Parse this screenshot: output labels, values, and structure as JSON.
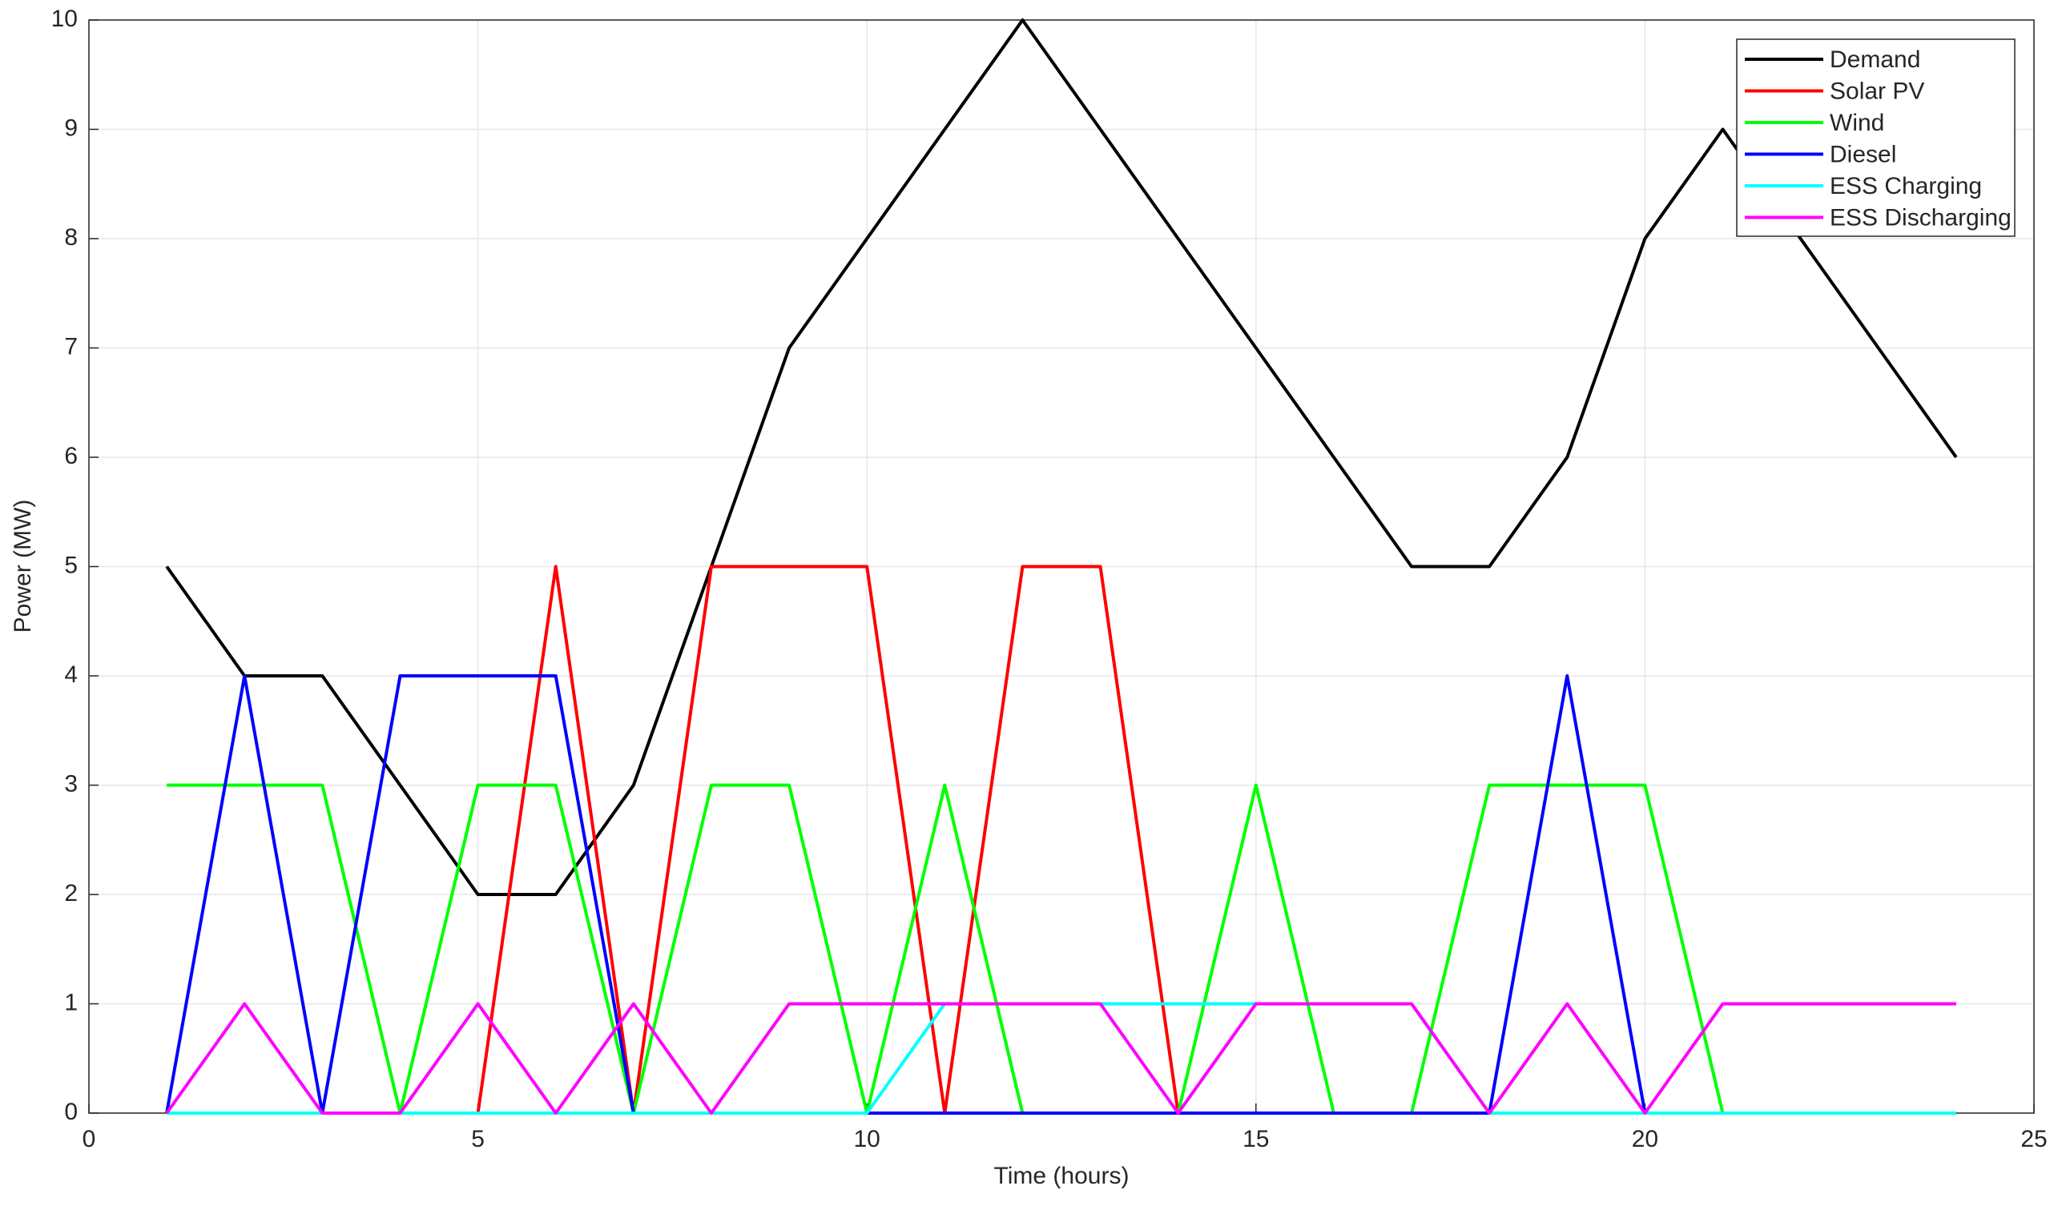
{
  "chart_data": {
    "type": "line",
    "x_label": "Time (hours)",
    "y_label": "Power (MW)",
    "x": [
      1,
      2,
      3,
      4,
      5,
      6,
      7,
      8,
      9,
      10,
      11,
      12,
      13,
      14,
      15,
      16,
      17,
      18,
      19,
      20,
      21,
      22,
      23,
      24
    ],
    "series": [
      {
        "name": "Demand",
        "color": "#000000",
        "values": [
          5,
          4,
          4,
          3,
          2,
          2,
          3,
          5,
          7,
          8,
          9,
          10,
          9,
          8,
          7,
          6,
          5,
          5,
          6,
          8,
          9,
          8,
          7,
          6
        ]
      },
      {
        "name": "Solar PV",
        "color": "#ff0000",
        "values": [
          0,
          0,
          0,
          0,
          0,
          5,
          0,
          5,
          5,
          5,
          0,
          5,
          5,
          0,
          0,
          0,
          0,
          0,
          0,
          0,
          0,
          0,
          0,
          0
        ]
      },
      {
        "name": "Wind",
        "color": "#00ff00",
        "values": [
          3,
          3,
          3,
          0,
          3,
          3,
          0,
          3,
          3,
          0,
          3,
          0,
          0,
          0,
          3,
          0,
          0,
          3,
          3,
          3,
          0,
          0,
          0,
          0
        ]
      },
      {
        "name": "Diesel",
        "color": "#0000ff",
        "values": [
          0,
          4,
          0,
          4,
          4,
          4,
          0,
          0,
          0,
          0,
          0,
          0,
          0,
          0,
          0,
          0,
          0,
          0,
          4,
          0,
          0,
          0,
          0,
          0
        ]
      },
      {
        "name": "ESS Charging",
        "color": "#00ffff",
        "values": [
          0,
          0,
          0,
          0,
          0,
          0,
          0,
          0,
          0,
          0,
          1,
          1,
          1,
          1,
          1,
          1,
          1,
          0,
          0,
          0,
          0,
          0,
          0,
          0
        ]
      },
      {
        "name": "ESS Discharging",
        "color": "#ff00ff",
        "values": [
          0,
          1,
          0,
          0,
          1,
          0,
          1,
          0,
          1,
          1,
          1,
          1,
          1,
          0,
          1,
          1,
          1,
          0,
          1,
          0,
          1,
          1,
          1,
          1
        ]
      }
    ],
    "xlim": [
      0,
      25
    ],
    "xticks": [
      0,
      5,
      10,
      15,
      20,
      25
    ],
    "ylim": [
      0,
      10
    ],
    "yticks": [
      0,
      1,
      2,
      3,
      4,
      5,
      6,
      7,
      8,
      9,
      10
    ],
    "grid": true,
    "legend": "upper-right"
  }
}
